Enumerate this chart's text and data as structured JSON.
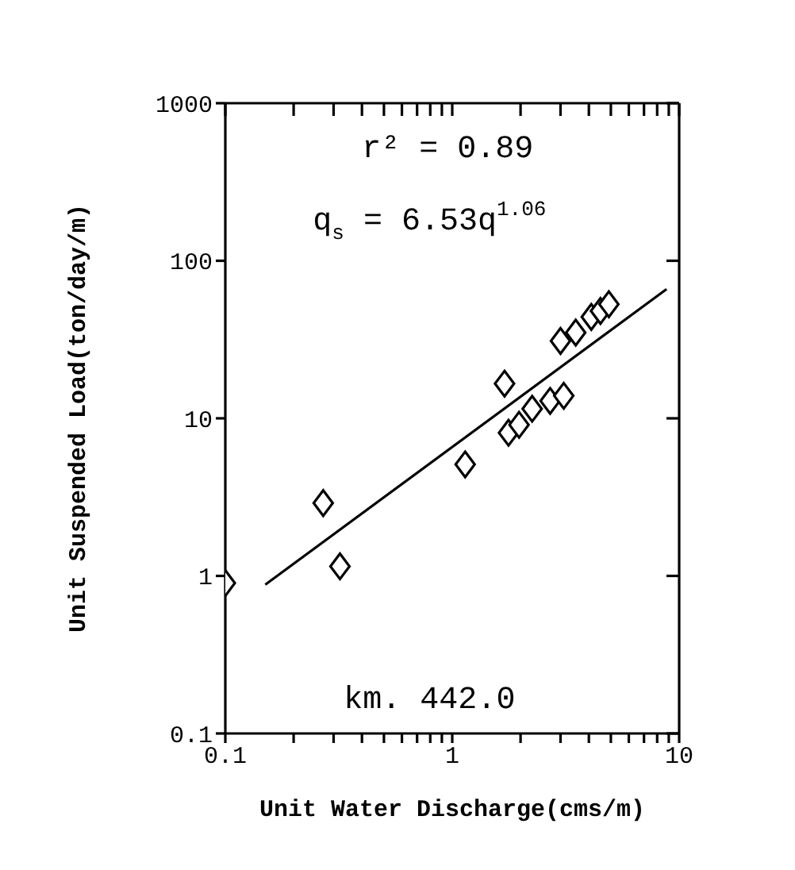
{
  "chart_data": {
    "type": "scatter",
    "xlabel": "Unit Water Discharge(cms/m)",
    "ylabel": "Unit Suspended Load(ton/day/m)",
    "log": "xy",
    "xlim": [
      0.1,
      10
    ],
    "ylim": [
      0.1,
      1000
    ],
    "xticks": [
      0.1,
      {
        "value": 0.2,
        "label": null
      },
      {
        "value": 0.3,
        "label": null
      },
      {
        "value": 0.4,
        "label": null
      },
      {
        "value": 0.5,
        "label": null
      },
      {
        "value": 0.6,
        "label": null
      },
      {
        "value": 0.7,
        "label": null
      },
      {
        "value": 0.8,
        "label": null
      },
      {
        "value": 0.9,
        "label": null
      },
      1,
      {
        "value": 2,
        "label": null
      },
      {
        "value": 3,
        "label": null
      },
      {
        "value": 4,
        "label": null
      },
      {
        "value": 5,
        "label": null
      },
      {
        "value": 6,
        "label": null
      },
      {
        "value": 7,
        "label": null
      },
      {
        "value": 8,
        "label": null
      },
      {
        "value": 9,
        "label": null
      },
      10
    ],
    "yticks": [
      0.1,
      1,
      10,
      100,
      1000
    ],
    "marker": "diamond",
    "series": [
      {
        "color": "#000000",
        "x": [
          0.1,
          0.27,
          0.32,
          1.14,
          1.7,
          1.77,
          1.97,
          2.25,
          2.7,
          3.1,
          3.0,
          3.5,
          4.1,
          4.5,
          4.9
        ],
        "values": [
          0.9,
          2.9,
          1.15,
          5.1,
          16.6,
          8.1,
          9.1,
          11.5,
          12.9,
          13.9,
          31,
          35,
          44,
          48,
          53
        ]
      },
      {
        "type": "line",
        "marker": "none",
        "color": "#000000",
        "line_style": "solid",
        "x": [
          0.15,
          8.8
        ],
        "values": [
          0.88,
          66
        ]
      }
    ],
    "annotations": [
      "r² = 0.89",
      "q$_{s}$ = 6.53q$^{1.06}$",
      "km. 442.0"
    ]
  }
}
